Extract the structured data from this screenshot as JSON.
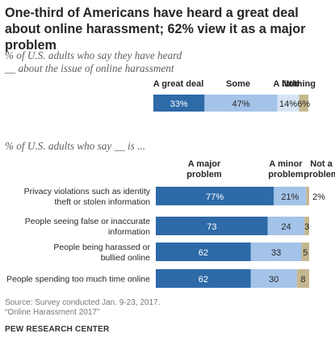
{
  "title": "One-third of Americans have heard a great deal about online harassment; 62% view it as a major problem",
  "note": {
    "source": "Source: Survey conducted Jan. 9-23, 2017.",
    "report": "“Online Harassment 2017”",
    "org": "PEW RESEARCH CENTER"
  },
  "colors": {
    "major": "#2e6aa8",
    "minor": "#a4c3e8",
    "light": "#d6e4f5",
    "not": "#c4b78f",
    "text": "#262626",
    "gray": "#606060"
  },
  "chart_data": [
    {
      "type": "bar",
      "orientation": "horizontal-stacked",
      "title": "% of U.S. adults who say they have heard __ about the issue of online harassment",
      "categories": [
        ""
      ],
      "series": [
        {
          "name": "A great deal",
          "values": [
            33
          ],
          "label": "33%"
        },
        {
          "name": "Some",
          "values": [
            47
          ],
          "label": "47%"
        },
        {
          "name": "A little",
          "values": [
            14
          ],
          "label": "14%"
        },
        {
          "name": "Nothing",
          "values": [
            6
          ],
          "label": "6%"
        }
      ],
      "xlim": [
        0,
        100
      ]
    },
    {
      "type": "bar",
      "orientation": "horizontal-stacked",
      "title": "% of U.S. adults who say __ is ...",
      "categories": [
        "Privacy violations such as identity theft or stolen information",
        "People seeing false or inaccurate information",
        "People being harassed or bullied online",
        "People spending too much time online"
      ],
      "series": [
        {
          "name": "A major problem",
          "values": [
            77,
            73,
            62,
            62
          ],
          "labels": [
            "77%",
            "73",
            "62",
            "62"
          ]
        },
        {
          "name": "A minor problem",
          "values": [
            21,
            24,
            33,
            30
          ],
          "labels": [
            "21%",
            "24",
            "33",
            "30"
          ]
        },
        {
          "name": "Not a problem",
          "values": [
            2,
            3,
            5,
            8
          ],
          "labels": [
            "2%",
            "3",
            "5",
            "8"
          ]
        }
      ],
      "xlim": [
        0,
        100
      ]
    }
  ]
}
